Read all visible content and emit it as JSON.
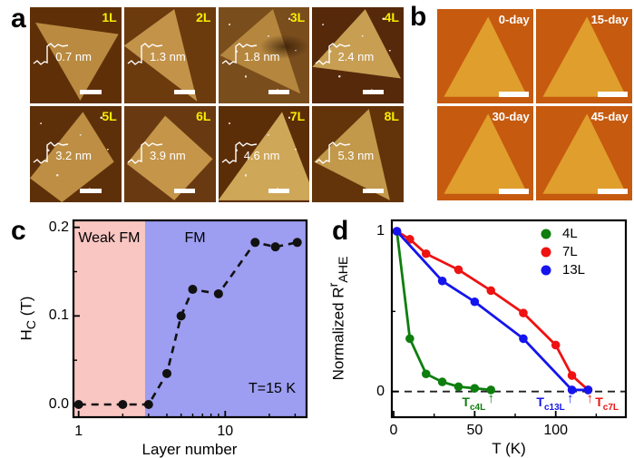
{
  "figure": {
    "panels": {
      "a": {
        "label": "a",
        "cells": [
          {
            "layer": "1L",
            "thickness": "0.7 nm",
            "bg": "#5f3008",
            "flake": "#b98a40",
            "shape": "polygon(6% 16%, 97% 28%, 55% 97%)",
            "speckles": false,
            "blotch": false
          },
          {
            "layer": "2L",
            "thickness": "1.3 nm",
            "bg": "#6b3b0e",
            "flake": "#c3934a",
            "shape": "polygon(0% 40%, 55% 2%, 80% 98%)",
            "speckles": false,
            "blotch": false
          },
          {
            "layer": "3L",
            "thickness": "1.8 nm",
            "bg": "#7a4d1d",
            "flake": "#b5863e",
            "shape": "polygon(2% 50%, 60% 2%, 90% 90%)",
            "speckles": true,
            "blotch": true
          },
          {
            "layer": "4L",
            "thickness": "2.4 nm",
            "bg": "#56290a",
            "flake": "#c79e52",
            "shape": "polygon(0% 62%, 58% 2%, 97% 74%)",
            "speckles": true,
            "blotch": false
          },
          {
            "layer": "5L",
            "thickness": "3.2 nm",
            "bg": "#5e3009",
            "flake": "#bd8e43",
            "shape": "polygon(0% 75%, 58% 6%, 92% 58%, 35% 100%)",
            "speckles": true,
            "blotch": false
          },
          {
            "layer": "6L",
            "thickness": "3.9 nm",
            "bg": "#693a12",
            "flake": "#c59549",
            "shape": "polygon(3% 60%, 45% 10%, 97% 55%, 55% 98%)",
            "speckles": false,
            "blotch": false
          },
          {
            "layer": "7L",
            "thickness": "4.6 nm",
            "bg": "#5c2e08",
            "flake": "#cfa758",
            "shape": "polygon(0% 98%, 70% 6%, 100% 80%, 100% 98%)",
            "speckles": true,
            "blotch": false
          },
          {
            "layer": "8L",
            "thickness": "5.3 nm",
            "bg": "#633409",
            "flake": "#c2984b",
            "shape": "polygon(2% 58%, 62% 3%, 85% 98%)",
            "speckles": false,
            "blotch": false
          }
        ]
      },
      "b": {
        "label": "b",
        "bg": "#c65a0f",
        "flake": "#e09e2d",
        "shape": "polygon(7% 93%, 94% 93%, 53% 8%)",
        "cells": [
          {
            "day": "0-day"
          },
          {
            "day": "15-day"
          },
          {
            "day": "30-day"
          },
          {
            "day": "45-day"
          }
        ]
      },
      "c": {
        "label": "c"
      },
      "d": {
        "label": "d"
      }
    }
  },
  "chart_data": [
    {
      "panel": "c",
      "type": "scatter",
      "x": [
        1,
        2,
        3,
        4,
        5,
        6,
        9,
        16,
        22,
        31
      ],
      "y": [
        0.0,
        0.0,
        0.0,
        0.035,
        0.1,
        0.13,
        0.125,
        0.183,
        0.178,
        0.183
      ],
      "marker_color": "#111111",
      "line_style": "dashed",
      "xlabel": "Layer number",
      "ylabel_html": "H<sub>C</sub> (T)",
      "xscale": "log",
      "xlim": [
        0.92,
        36
      ],
      "ylim": [
        -0.015,
        0.208
      ],
      "xticks": [
        1,
        10
      ],
      "xminor": [
        2,
        3,
        4,
        5,
        6,
        7,
        8,
        9,
        20,
        30
      ],
      "ytick_vals": [
        0.0,
        0.1,
        0.2
      ],
      "yticks": [
        "0.0",
        "0.1",
        "0.2"
      ],
      "yminor": [
        0.05,
        0.15
      ],
      "grid": false,
      "regions": [
        {
          "label": "Weak FM",
          "from": 0.92,
          "to": 2.84,
          "color": "#f9c6c2"
        },
        {
          "label": "FM",
          "from": 2.84,
          "to": 36,
          "color": "#9d9df1"
        }
      ],
      "annotation": "T=15 K"
    },
    {
      "panel": "d",
      "type": "line",
      "xlabel": "T (K)",
      "ylabel_html": "Normalized R<sup>r</sup><sub>AHE</sub>",
      "xlim": [
        0,
        143
      ],
      "ylim": [
        -0.16,
        1.07
      ],
      "xticks": [
        0,
        50,
        100
      ],
      "xminor": [
        25,
        75,
        125
      ],
      "ytick_vals": [
        0,
        1
      ],
      "yticks": [
        "0",
        "1"
      ],
      "yminor": [
        0.5
      ],
      "grid": false,
      "zero_dashed_line": true,
      "legend_position": "top-right",
      "series": [
        {
          "name": "4L",
          "color": "#0e7e0e",
          "x": [
            2,
            10,
            20,
            30,
            40,
            50,
            60
          ],
          "y": [
            1.0,
            0.33,
            0.11,
            0.06,
            0.03,
            0.02,
            0.01
          ]
        },
        {
          "name": "7L",
          "color": "#ee1212",
          "x": [
            2,
            10,
            20,
            40,
            60,
            80,
            100,
            110,
            120
          ],
          "y": [
            1.0,
            0.95,
            0.86,
            0.76,
            0.63,
            0.49,
            0.29,
            0.1,
            0.01
          ]
        },
        {
          "name": "13L",
          "color": "#1414ee",
          "x": [
            2,
            30,
            50,
            80,
            110,
            120
          ],
          "y": [
            1.0,
            0.69,
            0.56,
            0.33,
            0.01,
            0.01
          ]
        }
      ],
      "annotations": [
        {
          "html": "T<sub>c4L</sub>",
          "arrow_x": 60,
          "color": "#0e7e0e",
          "text_side": "left"
        },
        {
          "html": "T<sub>c13L</sub>",
          "arrow_x": 109,
          "color": "#1414ee",
          "text_side": "left"
        },
        {
          "html": "T<sub>c7L</sub>",
          "arrow_x": 121,
          "color": "#ee1212",
          "text_side": "right"
        }
      ]
    }
  ]
}
